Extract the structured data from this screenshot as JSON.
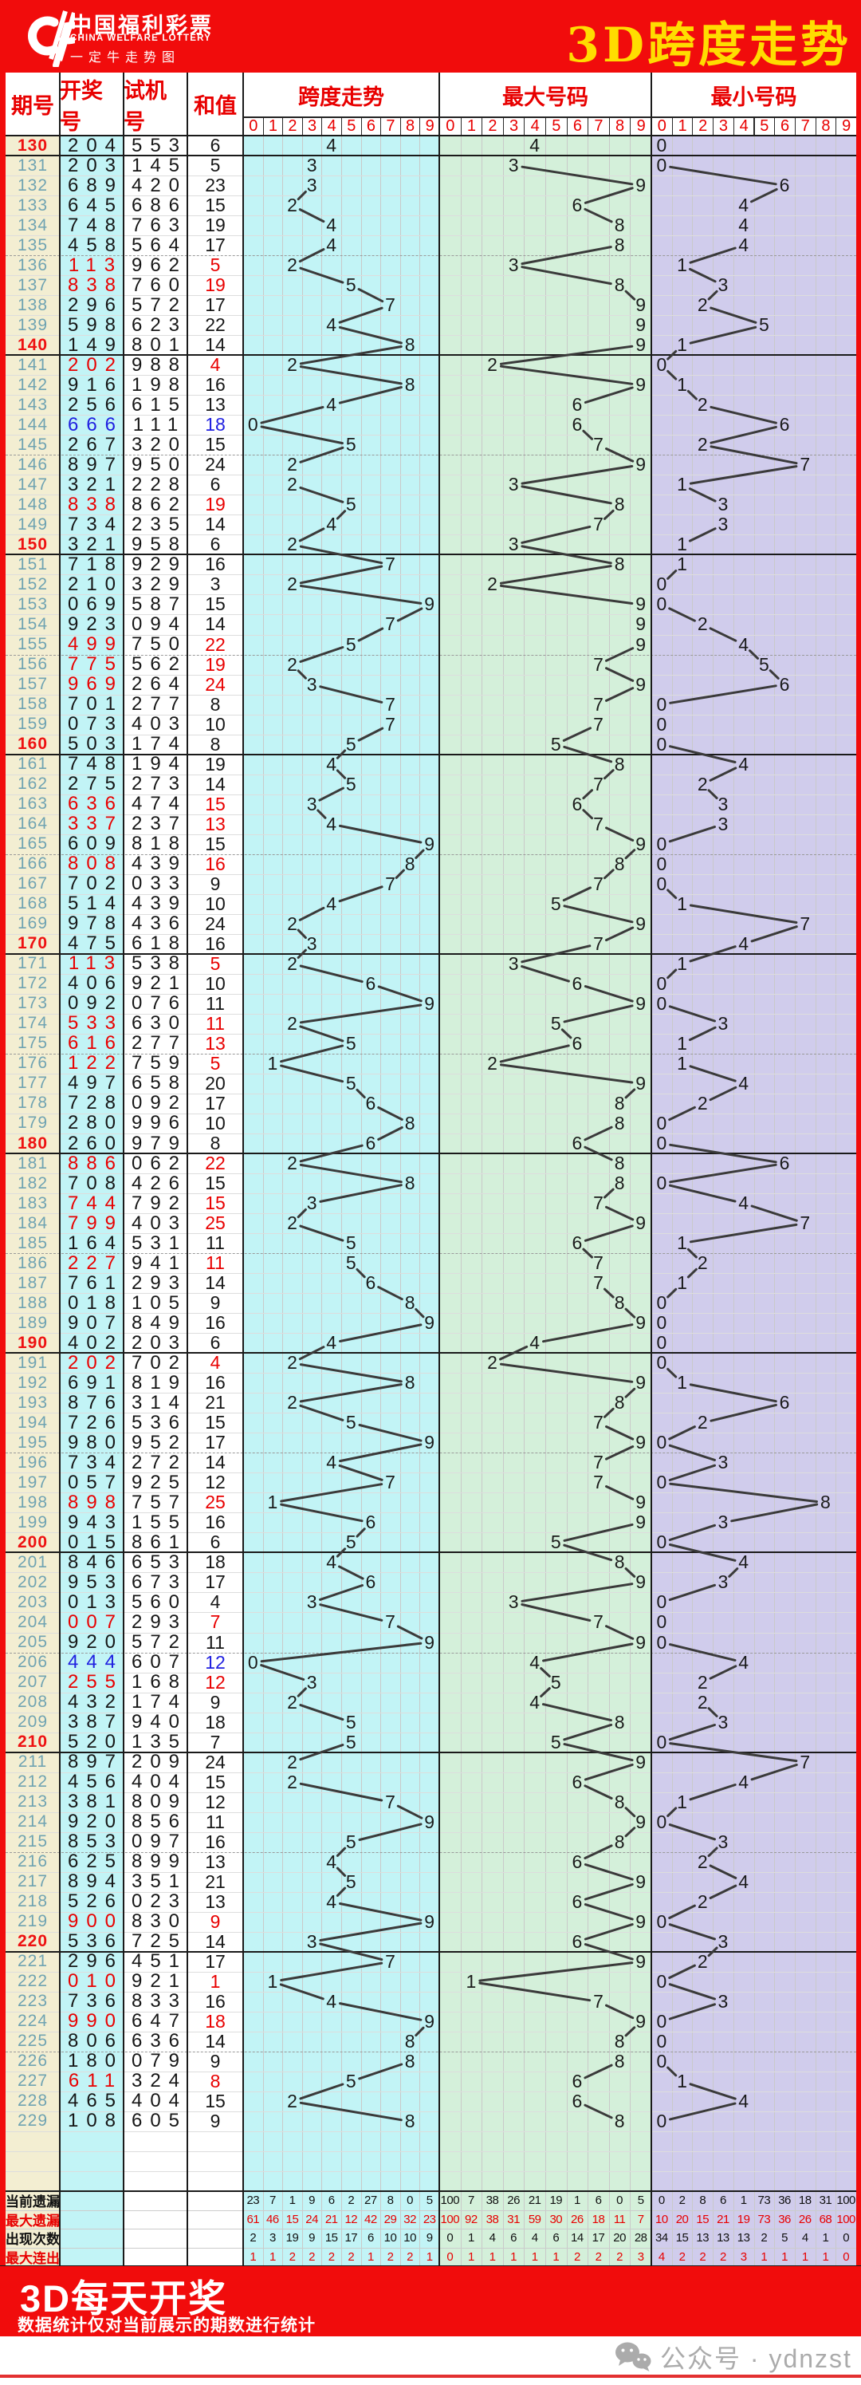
{
  "banner": {
    "logo_cn": "中国福利彩票",
    "logo_en": "CHINA WELFARE LOTTERY",
    "logo_tag": "一定牛走势图",
    "title": "3D跨度走势"
  },
  "header": {
    "period": "期号",
    "draw": "开奖号",
    "test": "试机号",
    "sum": "和值",
    "span_group": "跨度走势",
    "max_group": "最大号码",
    "min_group": "最小号码",
    "digits": [
      "0",
      "1",
      "2",
      "3",
      "4",
      "5",
      "6",
      "7",
      "8",
      "9"
    ]
  },
  "row_fields": [
    "period",
    "draw",
    "test",
    "sum"
  ],
  "rows": [
    [
      130,
      "204",
      "553",
      6
    ],
    [
      131,
      "203",
      "145",
      5
    ],
    [
      132,
      "689",
      "420",
      23
    ],
    [
      133,
      "645",
      "686",
      15
    ],
    [
      134,
      "748",
      "763",
      19
    ],
    [
      135,
      "458",
      "564",
      17
    ],
    [
      136,
      "113",
      "962",
      5
    ],
    [
      137,
      "838",
      "760",
      19
    ],
    [
      138,
      "296",
      "572",
      17
    ],
    [
      139,
      "598",
      "623",
      22
    ],
    [
      140,
      "149",
      "801",
      14
    ],
    [
      141,
      "202",
      "988",
      4
    ],
    [
      142,
      "916",
      "198",
      16
    ],
    [
      143,
      "256",
      "615",
      13
    ],
    [
      144,
      "666",
      "111",
      18
    ],
    [
      145,
      "267",
      "320",
      15
    ],
    [
      146,
      "897",
      "950",
      24
    ],
    [
      147,
      "321",
      "228",
      6
    ],
    [
      148,
      "838",
      "862",
      19
    ],
    [
      149,
      "734",
      "235",
      14
    ],
    [
      150,
      "321",
      "958",
      6
    ],
    [
      151,
      "718",
      "929",
      16
    ],
    [
      152,
      "210",
      "329",
      3
    ],
    [
      153,
      "069",
      "587",
      15
    ],
    [
      154,
      "923",
      "094",
      14
    ],
    [
      155,
      "499",
      "750",
      22
    ],
    [
      156,
      "775",
      "562",
      19
    ],
    [
      157,
      "969",
      "264",
      24
    ],
    [
      158,
      "701",
      "277",
      8
    ],
    [
      159,
      "073",
      "403",
      10
    ],
    [
      160,
      "503",
      "174",
      8
    ],
    [
      161,
      "748",
      "194",
      19
    ],
    [
      162,
      "275",
      "273",
      14
    ],
    [
      163,
      "636",
      "474",
      15
    ],
    [
      164,
      "337",
      "237",
      13
    ],
    [
      165,
      "609",
      "818",
      15
    ],
    [
      166,
      "808",
      "439",
      16
    ],
    [
      167,
      "702",
      "033",
      9
    ],
    [
      168,
      "514",
      "439",
      10
    ],
    [
      169,
      "978",
      "436",
      24
    ],
    [
      170,
      "475",
      "618",
      16
    ],
    [
      171,
      "113",
      "538",
      5
    ],
    [
      172,
      "406",
      "921",
      10
    ],
    [
      173,
      "092",
      "076",
      11
    ],
    [
      174,
      "533",
      "630",
      11
    ],
    [
      175,
      "616",
      "277",
      13
    ],
    [
      176,
      "122",
      "759",
      5
    ],
    [
      177,
      "497",
      "658",
      20
    ],
    [
      178,
      "728",
      "092",
      17
    ],
    [
      179,
      "280",
      "996",
      10
    ],
    [
      180,
      "260",
      "979",
      8
    ],
    [
      181,
      "886",
      "062",
      22
    ],
    [
      182,
      "708",
      "426",
      15
    ],
    [
      183,
      "744",
      "792",
      15
    ],
    [
      184,
      "799",
      "403",
      25
    ],
    [
      185,
      "164",
      "531",
      11
    ],
    [
      186,
      "227",
      "941",
      11
    ],
    [
      187,
      "761",
      "293",
      14
    ],
    [
      188,
      "018",
      "105",
      9
    ],
    [
      189,
      "907",
      "849",
      16
    ],
    [
      190,
      "402",
      "203",
      6
    ],
    [
      191,
      "202",
      "702",
      4
    ],
    [
      192,
      "691",
      "819",
      16
    ],
    [
      193,
      "876",
      "314",
      21
    ],
    [
      194,
      "726",
      "536",
      15
    ],
    [
      195,
      "980",
      "952",
      17
    ],
    [
      196,
      "734",
      "272",
      14
    ],
    [
      197,
      "057",
      "925",
      12
    ],
    [
      198,
      "898",
      "757",
      25
    ],
    [
      199,
      "943",
      "155",
      16
    ],
    [
      200,
      "015",
      "861",
      6
    ],
    [
      201,
      "846",
      "653",
      18
    ],
    [
      202,
      "953",
      "673",
      17
    ],
    [
      203,
      "013",
      "560",
      4
    ],
    [
      204,
      "007",
      "293",
      7
    ],
    [
      205,
      "920",
      "572",
      11
    ],
    [
      206,
      "444",
      "607",
      12
    ],
    [
      207,
      "255",
      "168",
      12
    ],
    [
      208,
      "432",
      "174",
      9
    ],
    [
      209,
      "387",
      "940",
      18
    ],
    [
      210,
      "520",
      "135",
      7
    ],
    [
      211,
      "897",
      "209",
      24
    ],
    [
      212,
      "456",
      "404",
      15
    ],
    [
      213,
      "381",
      "809",
      12
    ],
    [
      214,
      "920",
      "856",
      11
    ],
    [
      215,
      "853",
      "097",
      16
    ],
    [
      216,
      "625",
      "899",
      13
    ],
    [
      217,
      "894",
      "351",
      21
    ],
    [
      218,
      "526",
      "023",
      13
    ],
    [
      219,
      "900",
      "830",
      9
    ],
    [
      220,
      "536",
      "725",
      14
    ],
    [
      221,
      "296",
      "451",
      17
    ],
    [
      222,
      "010",
      "921",
      1
    ],
    [
      223,
      "736",
      "833",
      16
    ],
    [
      224,
      "990",
      "647",
      18
    ],
    [
      225,
      "806",
      "636",
      14
    ],
    [
      226,
      "180",
      "079",
      9
    ],
    [
      227,
      "611",
      "324",
      8
    ],
    [
      228,
      "465",
      "404",
      15
    ],
    [
      229,
      "108",
      "605",
      9
    ]
  ],
  "stats": [
    {
      "label": "当前遗漏",
      "color": "black",
      "span": [
        23,
        7,
        1,
        9,
        6,
        2,
        27,
        8,
        0,
        5
      ],
      "max": [
        100,
        7,
        38,
        26,
        21,
        19,
        1,
        6,
        0,
        5
      ],
      "min": [
        0,
        2,
        8,
        6,
        1,
        73,
        36,
        18,
        31,
        100
      ]
    },
    {
      "label": "最大遗漏",
      "color": "red",
      "span": [
        61,
        46,
        15,
        24,
        21,
        12,
        42,
        29,
        32,
        23
      ],
      "max": [
        100,
        92,
        38,
        31,
        59,
        30,
        26,
        18,
        11,
        7
      ],
      "min": [
        10,
        20,
        15,
        21,
        19,
        73,
        36,
        26,
        68,
        100
      ]
    },
    {
      "label": "出现次数",
      "color": "black",
      "span": [
        2,
        3,
        19,
        9,
        15,
        17,
        6,
        10,
        10,
        9
      ],
      "max": [
        0,
        1,
        4,
        6,
        4,
        6,
        14,
        17,
        20,
        28
      ],
      "min": [
        34,
        15,
        13,
        13,
        13,
        2,
        5,
        4,
        1,
        0
      ]
    },
    {
      "label": "最大连出",
      "color": "red",
      "span": [
        1,
        1,
        2,
        2,
        2,
        2,
        1,
        2,
        2,
        1
      ],
      "max": [
        0,
        1,
        1,
        1,
        1,
        1,
        2,
        2,
        2,
        3
      ],
      "min": [
        4,
        2,
        2,
        2,
        3,
        1,
        1,
        1,
        1,
        0
      ]
    }
  ],
  "footer": {
    "title": "3D每天开奖",
    "subtitle": "数据统计仅对当前展示的期数进行统计",
    "wechat": "公众号 · ydnzst"
  },
  "colors": {
    "banner_red": "#f10c0c",
    "title_yellow": "#ffdd00",
    "text_red": "#e80000",
    "text_blue": "#2020e0",
    "period_teal": "#6fa3b2",
    "period_beige": "#f3eed2",
    "cyan": "#c2f4f6",
    "green": "#d4f0da",
    "purple": "#d0ccec",
    "line_dark": "#3a3a3a",
    "handle_gray": "#ababab"
  }
}
